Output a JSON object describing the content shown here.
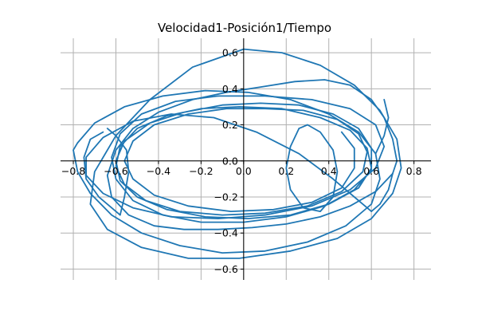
{
  "chart_data": {
    "type": "line",
    "title": "Velocidad1-Posición1/Tiempo",
    "xlabel": "",
    "ylabel": "",
    "xlim": [
      -0.86,
      0.88
    ],
    "ylim": [
      -0.66,
      0.68
    ],
    "xticks": [
      -0.8,
      -0.6,
      -0.4,
      -0.2,
      0.0,
      0.2,
      0.4,
      0.6,
      0.8
    ],
    "xtick_labels": [
      "−0.8",
      "−0.6",
      "−0.4",
      "−0.2",
      "0.0",
      "0.2",
      "0.4",
      "0.6",
      "0.8"
    ],
    "yticks": [
      -0.6,
      -0.4,
      -0.2,
      0.0,
      0.2,
      0.4,
      0.6
    ],
    "ytick_labels": [
      "−0.6",
      "−0.4",
      "−0.2",
      "0.0",
      "0.2",
      "0.4",
      "0.6"
    ],
    "grid": true,
    "spines": "centered",
    "series_color": "#1f77b4",
    "series": [
      {
        "x": [
          0.72,
          0.7,
          0.66,
          0.6,
          0.5,
          0.38,
          0.24,
          0.08,
          -0.08,
          -0.24,
          -0.4,
          -0.52,
          -0.6,
          -0.64,
          -0.62,
          -0.54,
          -0.42,
          -0.28,
          -0.12,
          0.04,
          0.2,
          0.36,
          0.5,
          0.62,
          0.7,
          0.72
        ],
        "y": [
          0.0,
          0.12,
          0.24,
          0.34,
          0.42,
          0.45,
          0.44,
          0.41,
          0.38,
          0.34,
          0.27,
          0.18,
          0.06,
          -0.08,
          -0.2,
          -0.3,
          -0.36,
          -0.38,
          -0.38,
          -0.37,
          -0.35,
          -0.31,
          -0.25,
          -0.17,
          -0.07,
          0.0
        ]
      },
      {
        "x": [
          0.7,
          0.68,
          0.64,
          0.6
        ],
        "y": [
          -0.07,
          -0.16,
          -0.24,
          -0.28
        ]
      },
      {
        "x": [
          0.6,
          0.54,
          0.42,
          0.26,
          0.06,
          -0.14,
          -0.34,
          -0.52,
          -0.66,
          -0.74,
          -0.74,
          -0.66,
          -0.52,
          -0.34,
          -0.12,
          0.1,
          0.32,
          0.5,
          0.62,
          0.66,
          0.62,
          0.5,
          0.32,
          0.1,
          -0.12
        ],
        "y": [
          -0.28,
          -0.22,
          -0.1,
          0.04,
          0.16,
          0.24,
          0.26,
          0.22,
          0.13,
          0.02,
          -0.08,
          -0.18,
          -0.26,
          -0.31,
          -0.32,
          -0.3,
          -0.25,
          -0.16,
          -0.04,
          0.08,
          0.2,
          0.29,
          0.34,
          0.36,
          0.36
        ]
      },
      {
        "x": [
          0.3,
          0.26,
          0.22,
          0.2,
          0.22,
          0.28,
          0.36,
          0.42,
          0.44,
          0.42,
          0.36,
          0.3
        ],
        "y": [
          0.2,
          0.18,
          0.08,
          -0.04,
          -0.16,
          -0.26,
          -0.28,
          -0.2,
          -0.06,
          0.06,
          0.16,
          0.2
        ]
      },
      {
        "x": [
          -0.12,
          -0.32,
          -0.48,
          -0.58,
          -0.62,
          -0.6,
          -0.52,
          -0.38,
          -0.2,
          0.0,
          0.2,
          0.38,
          0.52,
          0.6,
          0.6,
          0.54,
          0.42,
          0.26,
          0.08,
          -0.1,
          -0.28,
          -0.44,
          -0.56,
          -0.6,
          -0.58,
          -0.5,
          -0.36,
          -0.18,
          0.02,
          0.22,
          0.4,
          0.54,
          0.6,
          0.58,
          0.5,
          0.36,
          0.18,
          -0.02,
          -0.2,
          -0.36,
          -0.5,
          -0.58,
          -0.6,
          -0.56
        ],
        "y": [
          0.36,
          0.33,
          0.26,
          0.15,
          0.02,
          -0.1,
          -0.22,
          -0.3,
          -0.34,
          -0.34,
          -0.31,
          -0.25,
          -0.16,
          -0.05,
          0.07,
          0.18,
          0.26,
          0.31,
          0.32,
          0.31,
          0.27,
          0.21,
          0.11,
          0.0,
          -0.11,
          -0.2,
          -0.27,
          -0.31,
          -0.32,
          -0.3,
          -0.24,
          -0.15,
          -0.04,
          0.07,
          0.17,
          0.24,
          0.29,
          0.3,
          0.29,
          0.25,
          0.18,
          0.08,
          -0.03,
          -0.13
        ]
      },
      {
        "x": [
          -0.56,
          -0.46,
          -0.3,
          -0.1,
          0.1,
          0.3,
          0.46,
          0.56,
          0.58,
          0.54,
          0.44,
          0.28,
          0.1,
          -0.08,
          -0.26,
          -0.42,
          -0.52,
          -0.56,
          -0.52,
          -0.42,
          -0.26,
          -0.06,
          0.14,
          0.32,
          0.46,
          0.52,
          0.52,
          0.46
        ],
        "y": [
          -0.13,
          -0.22,
          -0.28,
          -0.3,
          -0.29,
          -0.25,
          -0.17,
          -0.06,
          0.05,
          0.15,
          0.23,
          0.28,
          0.29,
          0.29,
          0.26,
          0.2,
          0.11,
          0.0,
          -0.1,
          -0.19,
          -0.25,
          -0.28,
          -0.27,
          -0.23,
          -0.15,
          -0.04,
          0.07,
          0.16
        ]
      },
      {
        "x": [
          -0.8,
          -0.78,
          -0.72,
          -0.62,
          -0.48,
          -0.3,
          -0.1,
          0.1,
          0.3,
          0.48,
          0.6,
          0.64,
          0.62,
          0.54,
          0.4,
          0.22,
          0.02,
          -0.18,
          -0.38,
          -0.56,
          -0.7,
          -0.78,
          -0.8
        ],
        "y": [
          0.06,
          -0.06,
          -0.18,
          -0.3,
          -0.4,
          -0.47,
          -0.51,
          -0.5,
          -0.45,
          -0.36,
          -0.24,
          -0.1,
          0.04,
          0.16,
          0.26,
          0.34,
          0.38,
          0.39,
          0.36,
          0.3,
          0.21,
          0.1,
          0.06
        ]
      },
      {
        "x": [
          -0.66,
          -0.72,
          -0.75,
          -0.74,
          -0.68,
          -0.58
        ],
        "y": [
          0.16,
          0.12,
          0.02,
          -0.1,
          -0.2,
          -0.3
        ]
      },
      {
        "x": [
          -0.58,
          -0.56,
          -0.54,
          -0.55,
          -0.6,
          -0.64
        ],
        "y": [
          -0.3,
          -0.2,
          -0.06,
          0.06,
          0.14,
          0.18
        ]
      },
      {
        "x": [
          0.0,
          0.18,
          0.36,
          0.52,
          0.64,
          0.72,
          0.74,
          0.7,
          0.6,
          0.44,
          0.22,
          -0.02,
          -0.26,
          -0.48,
          -0.64,
          -0.72,
          -0.7,
          -0.6,
          -0.44,
          -0.24,
          0.0
        ],
        "y": [
          0.62,
          0.6,
          0.53,
          0.42,
          0.28,
          0.12,
          -0.04,
          -0.18,
          -0.32,
          -0.43,
          -0.5,
          -0.54,
          -0.54,
          -0.48,
          -0.38,
          -0.24,
          -0.06,
          0.14,
          0.34,
          0.52,
          0.62
        ]
      },
      {
        "x": [
          0.66,
          0.68,
          0.66,
          0.62
        ],
        "y": [
          0.34,
          0.24,
          0.14,
          0.04
        ]
      }
    ]
  }
}
